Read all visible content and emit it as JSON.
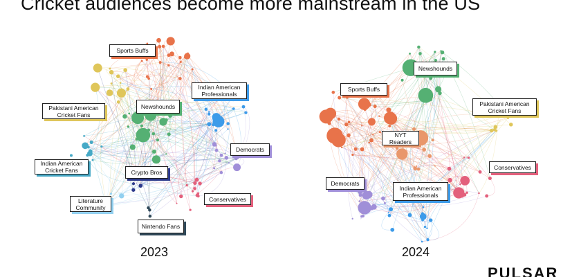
{
  "title": "Cricket audiences become more mainstream in the US",
  "logo": "PULSAR",
  "colors": {
    "sports_buffs": "#e8734a",
    "newshounds": "#55b073",
    "indian_american_professionals": "#3d9be9",
    "pakistani_american_cricket_fans": "#dfc65a",
    "democrats": "#a08fd8",
    "indian_american_cricket_fans": "#46a9c6",
    "crypto_bros": "#2d3a8c",
    "conservatives": "#e3607c",
    "literature_community": "#92d0f0",
    "nintendo_fans": "#2f4858",
    "nyt_readers": "#e9976b"
  },
  "graphs": [
    {
      "year": "2023",
      "labels": [
        {
          "key": "sports_buffs",
          "text": "Sports Buffs"
        },
        {
          "key": "indian_american_professionals",
          "text": "Indian American Professionals"
        },
        {
          "key": "pakistani_american_cricket_fans",
          "text": "Pakistani American Cricket Fans"
        },
        {
          "key": "newshounds",
          "text": "Newshounds"
        },
        {
          "key": "democrats",
          "text": "Democrats"
        },
        {
          "key": "indian_american_cricket_fans",
          "text": "Indian American Cricket Fans"
        },
        {
          "key": "crypto_bros",
          "text": "Crypto Bros"
        },
        {
          "key": "conservatives",
          "text": "Conservatives"
        },
        {
          "key": "literature_community",
          "text": "Literature Community"
        },
        {
          "key": "nintendo_fans",
          "text": "Nintendo Fans"
        }
      ]
    },
    {
      "year": "2024",
      "labels": [
        {
          "key": "newshounds",
          "text": "Newshounds"
        },
        {
          "key": "sports_buffs",
          "text": "Sports Buffs"
        },
        {
          "key": "pakistani_american_cricket_fans",
          "text": "Pakistani American Cricket Fans"
        },
        {
          "key": "nyt_readers",
          "text": "NYT Readers"
        },
        {
          "key": "conservatives",
          "text": "Conservatives"
        },
        {
          "key": "democrats",
          "text": "Democrats"
        },
        {
          "key": "indian_american_professionals",
          "text": "Indian American Professionals"
        }
      ]
    }
  ]
}
